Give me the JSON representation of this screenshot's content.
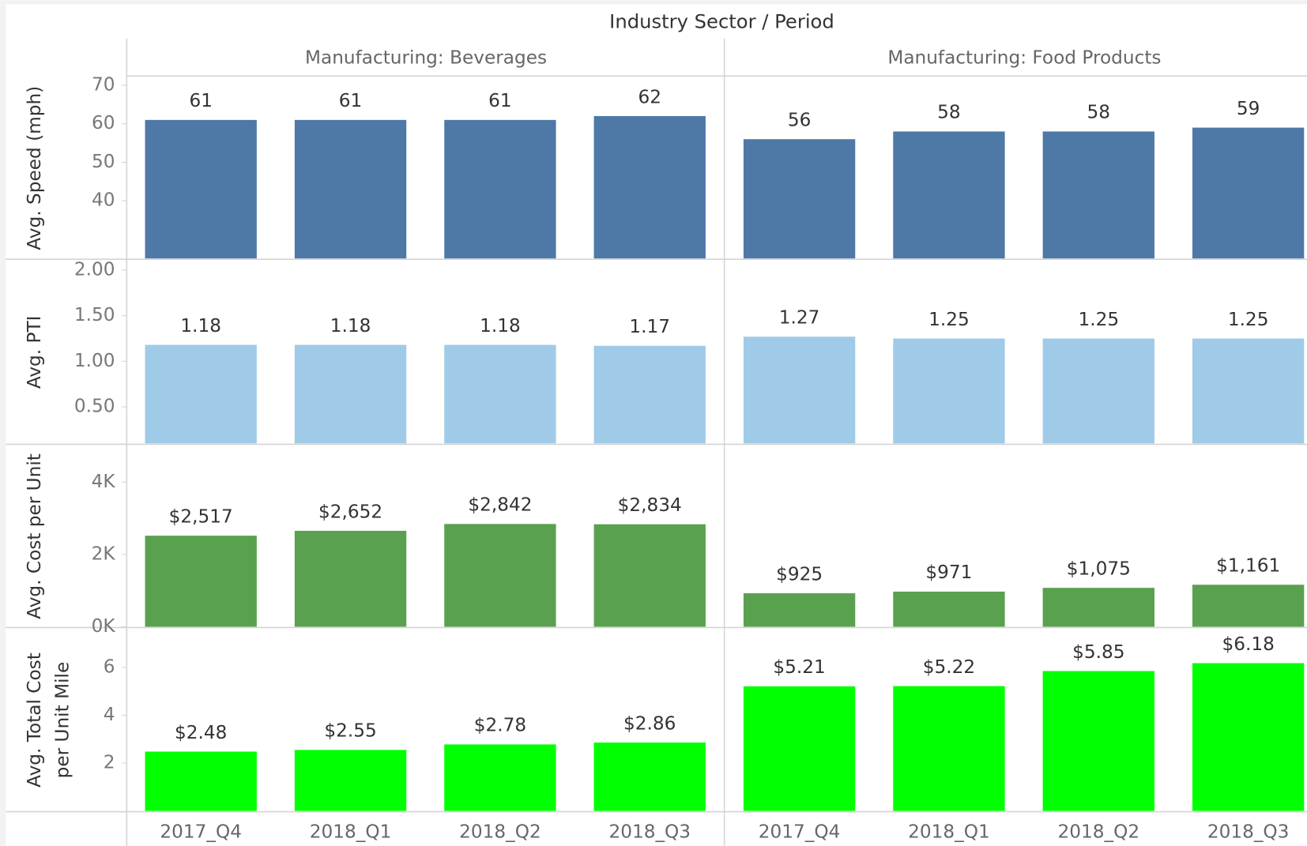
{
  "chart_data": {
    "type": "bar",
    "title": "Industry Sector / Period",
    "groups": [
      "Manufacturing: Beverages",
      "Manufacturing: Food Products"
    ],
    "categories": [
      "2017_Q4",
      "2018_Q1",
      "2018_Q2",
      "2018_Q3"
    ],
    "panels": [
      {
        "axis_label": [
          "Avg. Speed (mph)"
        ],
        "color": "#4e79a7",
        "ylim": [
          25,
          72
        ],
        "yticks": [
          40,
          50,
          60,
          70
        ],
        "values": [
          [
            61,
            61,
            61,
            62
          ],
          [
            56,
            58,
            58,
            59
          ]
        ]
      },
      {
        "axis_label": [
          "Avg. PTI"
        ],
        "color": "#a0cbe8",
        "ylim": [
          0.1,
          2.1
        ],
        "yticks": [
          {
            "value": 0.5,
            "label": "0.50"
          },
          {
            "value": 1,
            "label": "1.00"
          },
          {
            "value": 1.5,
            "label": "1.50"
          },
          {
            "value": 2,
            "label": "2.00"
          }
        ],
        "values": [
          [
            1.18,
            1.18,
            1.18,
            1.17
          ],
          [
            1.27,
            1.25,
            1.25,
            1.25
          ]
        ]
      },
      {
        "axis_label": [
          "Avg. Cost per Unit"
        ],
        "color": "#59a14f",
        "ylim": [
          0,
          5000
        ],
        "yticks": [
          {
            "value": 0,
            "label": "0K"
          },
          {
            "value": 2000,
            "label": "2K"
          },
          {
            "value": 4000,
            "label": "4K"
          }
        ],
        "values": [
          [
            2517,
            2652,
            2842,
            2834
          ],
          [
            925,
            971,
            1075,
            1161
          ]
        ],
        "value_labels": [
          [
            "$2,517",
            "$2,652",
            "$2,842",
            "$2,834"
          ],
          [
            "$925",
            "$971",
            "$1,075",
            "$1,161"
          ]
        ]
      },
      {
        "axis_label": [
          "Avg. Total Cost",
          "per Unit Mile"
        ],
        "color": "#00ff00",
        "ylim": [
          0,
          7.6
        ],
        "yticks": [
          2,
          4,
          6
        ],
        "values": [
          [
            2.48,
            2.55,
            2.78,
            2.86
          ],
          [
            5.21,
            5.22,
            5.85,
            6.18
          ]
        ],
        "value_labels": [
          [
            "$2.48",
            "$2.55",
            "$2.78",
            "$2.86"
          ],
          [
            "$5.21",
            "$5.22",
            "$5.85",
            "$6.18"
          ]
        ]
      }
    ]
  }
}
